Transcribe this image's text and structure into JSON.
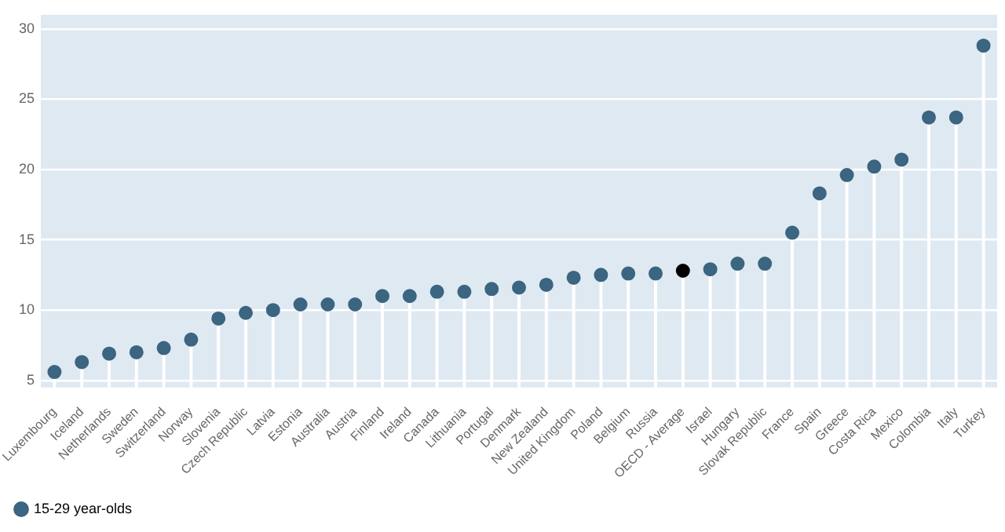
{
  "chart_data": {
    "type": "lollipop",
    "categories": [
      "Luxembourg",
      "Iceland",
      "Netherlands",
      "Sweden",
      "Switzerland",
      "Norway",
      "Slovenia",
      "Czech Republic",
      "Latvia",
      "Estonia",
      "Australia",
      "Austria",
      "Finland",
      "Ireland",
      "Canada",
      "Lithuania",
      "Portugal",
      "Denmark",
      "New Zealand",
      "United Kingdom",
      "Poland",
      "Belgium",
      "Russia",
      "OECD - Average",
      "Israel",
      "Hungary",
      "Slovak Republic",
      "France",
      "Spain",
      "Greece",
      "Costa Rica",
      "Mexico",
      "Colombia",
      "Italy",
      "Turkey"
    ],
    "series": [
      {
        "name": "15-29 year-olds",
        "color": "#3b6581",
        "colors": [
          "#3b6581",
          "#3b6581",
          "#3b6581",
          "#3b6581",
          "#3b6581",
          "#3b6581",
          "#3b6581",
          "#3b6581",
          "#3b6581",
          "#3b6581",
          "#3b6581",
          "#3b6581",
          "#3b6581",
          "#3b6581",
          "#3b6581",
          "#3b6581",
          "#3b6581",
          "#3b6581",
          "#3b6581",
          "#3b6581",
          "#3b6581",
          "#3b6581",
          "#3b6581",
          "#000000",
          "#3b6581",
          "#3b6581",
          "#3b6581",
          "#3b6581",
          "#3b6581",
          "#3b6581",
          "#3b6581",
          "#3b6581",
          "#3b6581",
          "#3b6581",
          "#3b6581"
        ],
        "values": [
          5.6,
          6.3,
          6.9,
          7.0,
          7.3,
          7.9,
          9.4,
          9.8,
          10.0,
          10.4,
          10.4,
          10.4,
          11.0,
          11.0,
          11.3,
          11.3,
          11.5,
          11.6,
          11.8,
          12.3,
          12.5,
          12.6,
          12.6,
          12.8,
          12.9,
          13.3,
          13.3,
          15.5,
          18.3,
          19.6,
          20.2,
          20.7,
          23.7,
          23.7,
          28.8
        ]
      }
    ],
    "ylim": [
      4.5,
      31
    ],
    "yticks": [
      5,
      10,
      15,
      20,
      25,
      30
    ],
    "grid": "y",
    "legend": "bottom left",
    "marker": "circle"
  }
}
